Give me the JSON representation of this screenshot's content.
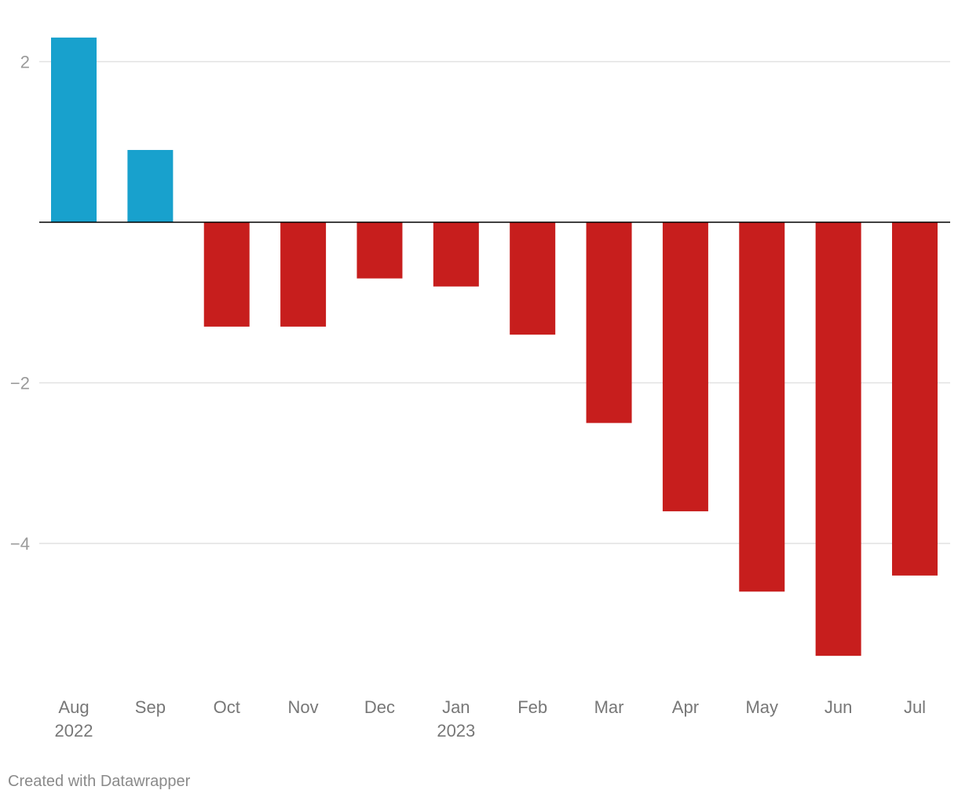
{
  "chart_data": {
    "type": "bar",
    "categories": [
      "Aug",
      "Sep",
      "Oct",
      "Nov",
      "Dec",
      "Jan",
      "Feb",
      "Mar",
      "Apr",
      "May",
      "Jun",
      "Jul"
    ],
    "year_labels": [
      "2022",
      "",
      "",
      "",
      "",
      "2023",
      "",
      "",
      "",
      "",
      "",
      ""
    ],
    "values": [
      2.3,
      0.9,
      -1.3,
      -1.3,
      -0.7,
      -0.8,
      -1.4,
      -2.5,
      -3.6,
      -4.6,
      -5.4,
      -4.4
    ],
    "yticks": [
      2,
      -2,
      -4
    ],
    "ytick_labels": [
      "2",
      "−2",
      "−4"
    ],
    "ylim": [
      -5.7,
      2.35
    ],
    "colors": {
      "positive": "#18a1cd",
      "negative": "#c71e1d",
      "grid": "#e2e2e2",
      "baseline": "#000000"
    },
    "grid": true,
    "title": "",
    "xlabel": "",
    "ylabel": ""
  },
  "footer": {
    "credit": "Created with Datawrapper"
  }
}
